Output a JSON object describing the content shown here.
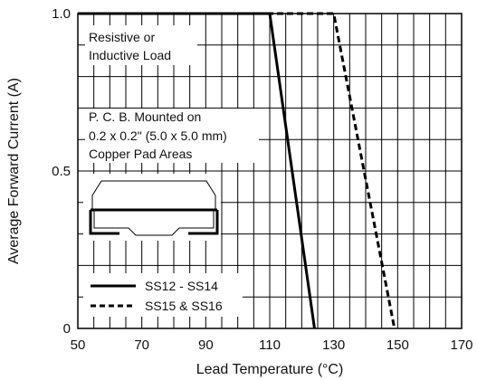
{
  "chart_data": {
    "type": "line",
    "xlabel": "Lead Temperature (°C)",
    "ylabel": "Average Forward Current (A)",
    "xlim": [
      50,
      170
    ],
    "ylim": [
      0,
      1.0
    ],
    "x_ticks": [
      50,
      70,
      90,
      110,
      130,
      150,
      170
    ],
    "y_ticks": [
      0,
      0.5,
      1.0
    ],
    "y_tick_labels": [
      "0",
      "0.5",
      "1.0"
    ],
    "grid": true,
    "series": [
      {
        "name": "SS12 - SS14",
        "style": "solid",
        "color": "#000000",
        "x": [
          50,
          110,
          124
        ],
        "y": [
          1.0,
          1.0,
          0
        ]
      },
      {
        "name": "SS15 & SS16",
        "style": "dashed",
        "color": "#000000",
        "x": [
          50,
          130,
          149
        ],
        "y": [
          1.0,
          1.0,
          0
        ]
      }
    ],
    "annotations": {
      "load": [
        "Resistive or",
        "Inductive Load"
      ],
      "mounting": [
        "P. C. B. Mounted on",
        "0.2 x 0.2\" (5.0 x 5.0 mm)",
        "Copper Pad Areas"
      ]
    },
    "legend_position": "bottom-left"
  }
}
